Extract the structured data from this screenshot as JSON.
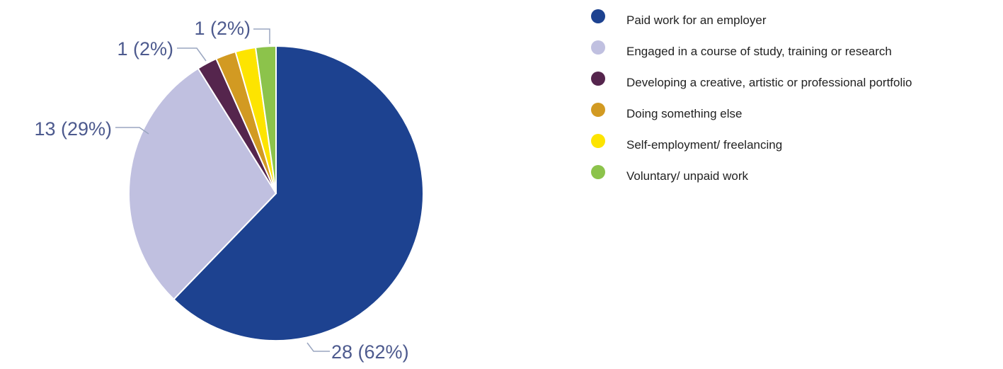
{
  "chart_data": {
    "type": "pie",
    "title": "",
    "legend_position": "right",
    "slices": [
      {
        "name": "Paid work for an employer",
        "value": 28,
        "percent": 62,
        "label": "28 (62%)",
        "color": "#1d4290"
      },
      {
        "name": "Engaged in a course of study, training or research",
        "value": 13,
        "percent": 29,
        "label": "13 (29%)",
        "color": "#c0c0e0"
      },
      {
        "name": "Developing a creative, artistic or professional portfolio",
        "value": 1,
        "percent": 2,
        "label": "",
        "color": "#55254d"
      },
      {
        "name": "Doing something else",
        "value": 1,
        "percent": 2,
        "label": "1 (2%)",
        "color": "#d29a22"
      },
      {
        "name": "Self-employment/ freelancing",
        "value": 1,
        "percent": 2,
        "label": "",
        "color": "#fde400"
      },
      {
        "name": "Voluntary/ unpaid work",
        "value": 1,
        "percent": 2,
        "label": "1 (2%)",
        "color": "#8cc34b"
      }
    ]
  }
}
